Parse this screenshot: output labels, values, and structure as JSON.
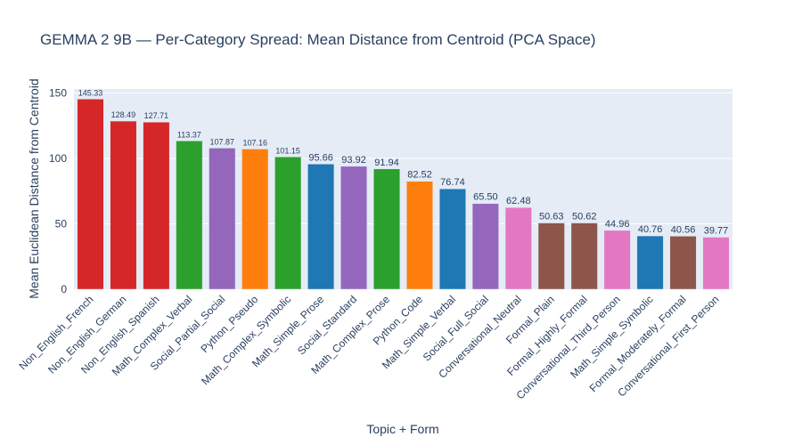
{
  "chart_data": {
    "type": "bar",
    "title": "GEMMA 2 9B — Per-Category Spread: Mean Distance from Centroid (PCA Space)",
    "xlabel": "Topic + Form",
    "ylabel": "Mean Euclidean Distance from Centroid",
    "ylim": [
      0,
      153
    ],
    "yticks": [
      0,
      50,
      100,
      150
    ],
    "grid": true,
    "categories": [
      "Non_English_French",
      "Non_English_German",
      "Non_English_Spanish",
      "Math_Complex_Verbal",
      "Social_Partial_Social",
      "Python_Pseudo",
      "Math_Complex_Symbolic",
      "Math_Simple_Prose",
      "Social_Standard",
      "Math_Complex_Prose",
      "Python_Code",
      "Math_Simple_Verbal",
      "Social_Full_Social",
      "Conversational_Neutral",
      "Formal_Plain",
      "Formal_Highly_Formal",
      "Conversational_Third_Person",
      "Math_Simple_Symbolic",
      "Formal_Moderately_Formal",
      "Conversational_First_Person"
    ],
    "values": [
      145.33,
      128.49,
      127.71,
      113.37,
      107.87,
      107.16,
      101.15,
      95.66,
      93.92,
      91.94,
      82.52,
      76.74,
      65.5,
      62.48,
      50.63,
      50.62,
      44.96,
      40.76,
      40.56,
      39.77
    ],
    "labels": [
      "145.33",
      "128.49",
      "127.71",
      "113.37",
      "107.87",
      "107.16",
      "101.15",
      "95.66",
      "93.92",
      "91.94",
      "82.52",
      "76.74",
      "65.50",
      "62.48",
      "50.63",
      "50.62",
      "44.96",
      "40.76",
      "40.56",
      "39.77"
    ],
    "colors": [
      "#d62728",
      "#d62728",
      "#d62728",
      "#2ca02c",
      "#9467bd",
      "#ff7f0e",
      "#2ca02c",
      "#1f77b4",
      "#9467bd",
      "#2ca02c",
      "#ff7f0e",
      "#1f77b4",
      "#9467bd",
      "#e377c2",
      "#8c564b",
      "#8c564b",
      "#e377c2",
      "#1f77b4",
      "#8c564b",
      "#e377c2"
    ]
  }
}
